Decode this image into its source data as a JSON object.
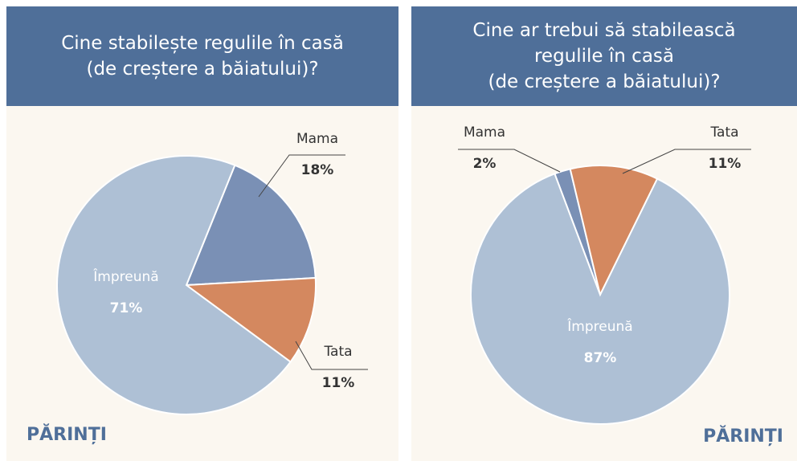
{
  "chart_data": [
    {
      "type": "pie",
      "title": "Cine stabilește regulile în casă\n(de creștere a băiatului)?",
      "categories": [
        "Mama",
        "Tata",
        "Împreună"
      ],
      "values": [
        18,
        11,
        71
      ],
      "value_labels": [
        "18%",
        "11%",
        "71%"
      ],
      "colors": [
        "#7a90b5",
        "#d4885f",
        "#aec0d5"
      ],
      "footer": "PĂRINȚI"
    },
    {
      "type": "pie",
      "title": "Cine ar trebui să stabilească\nregulile în casă\n(de creștere a băiatului)?",
      "categories": [
        "Mama",
        "Tata",
        "Împreună"
      ],
      "values": [
        2,
        11,
        87
      ],
      "value_labels": [
        "2%",
        "11%",
        "87%"
      ],
      "colors": [
        "#7a90b5",
        "#d4885f",
        "#aec0d5"
      ],
      "footer": "PĂRINȚI"
    }
  ]
}
